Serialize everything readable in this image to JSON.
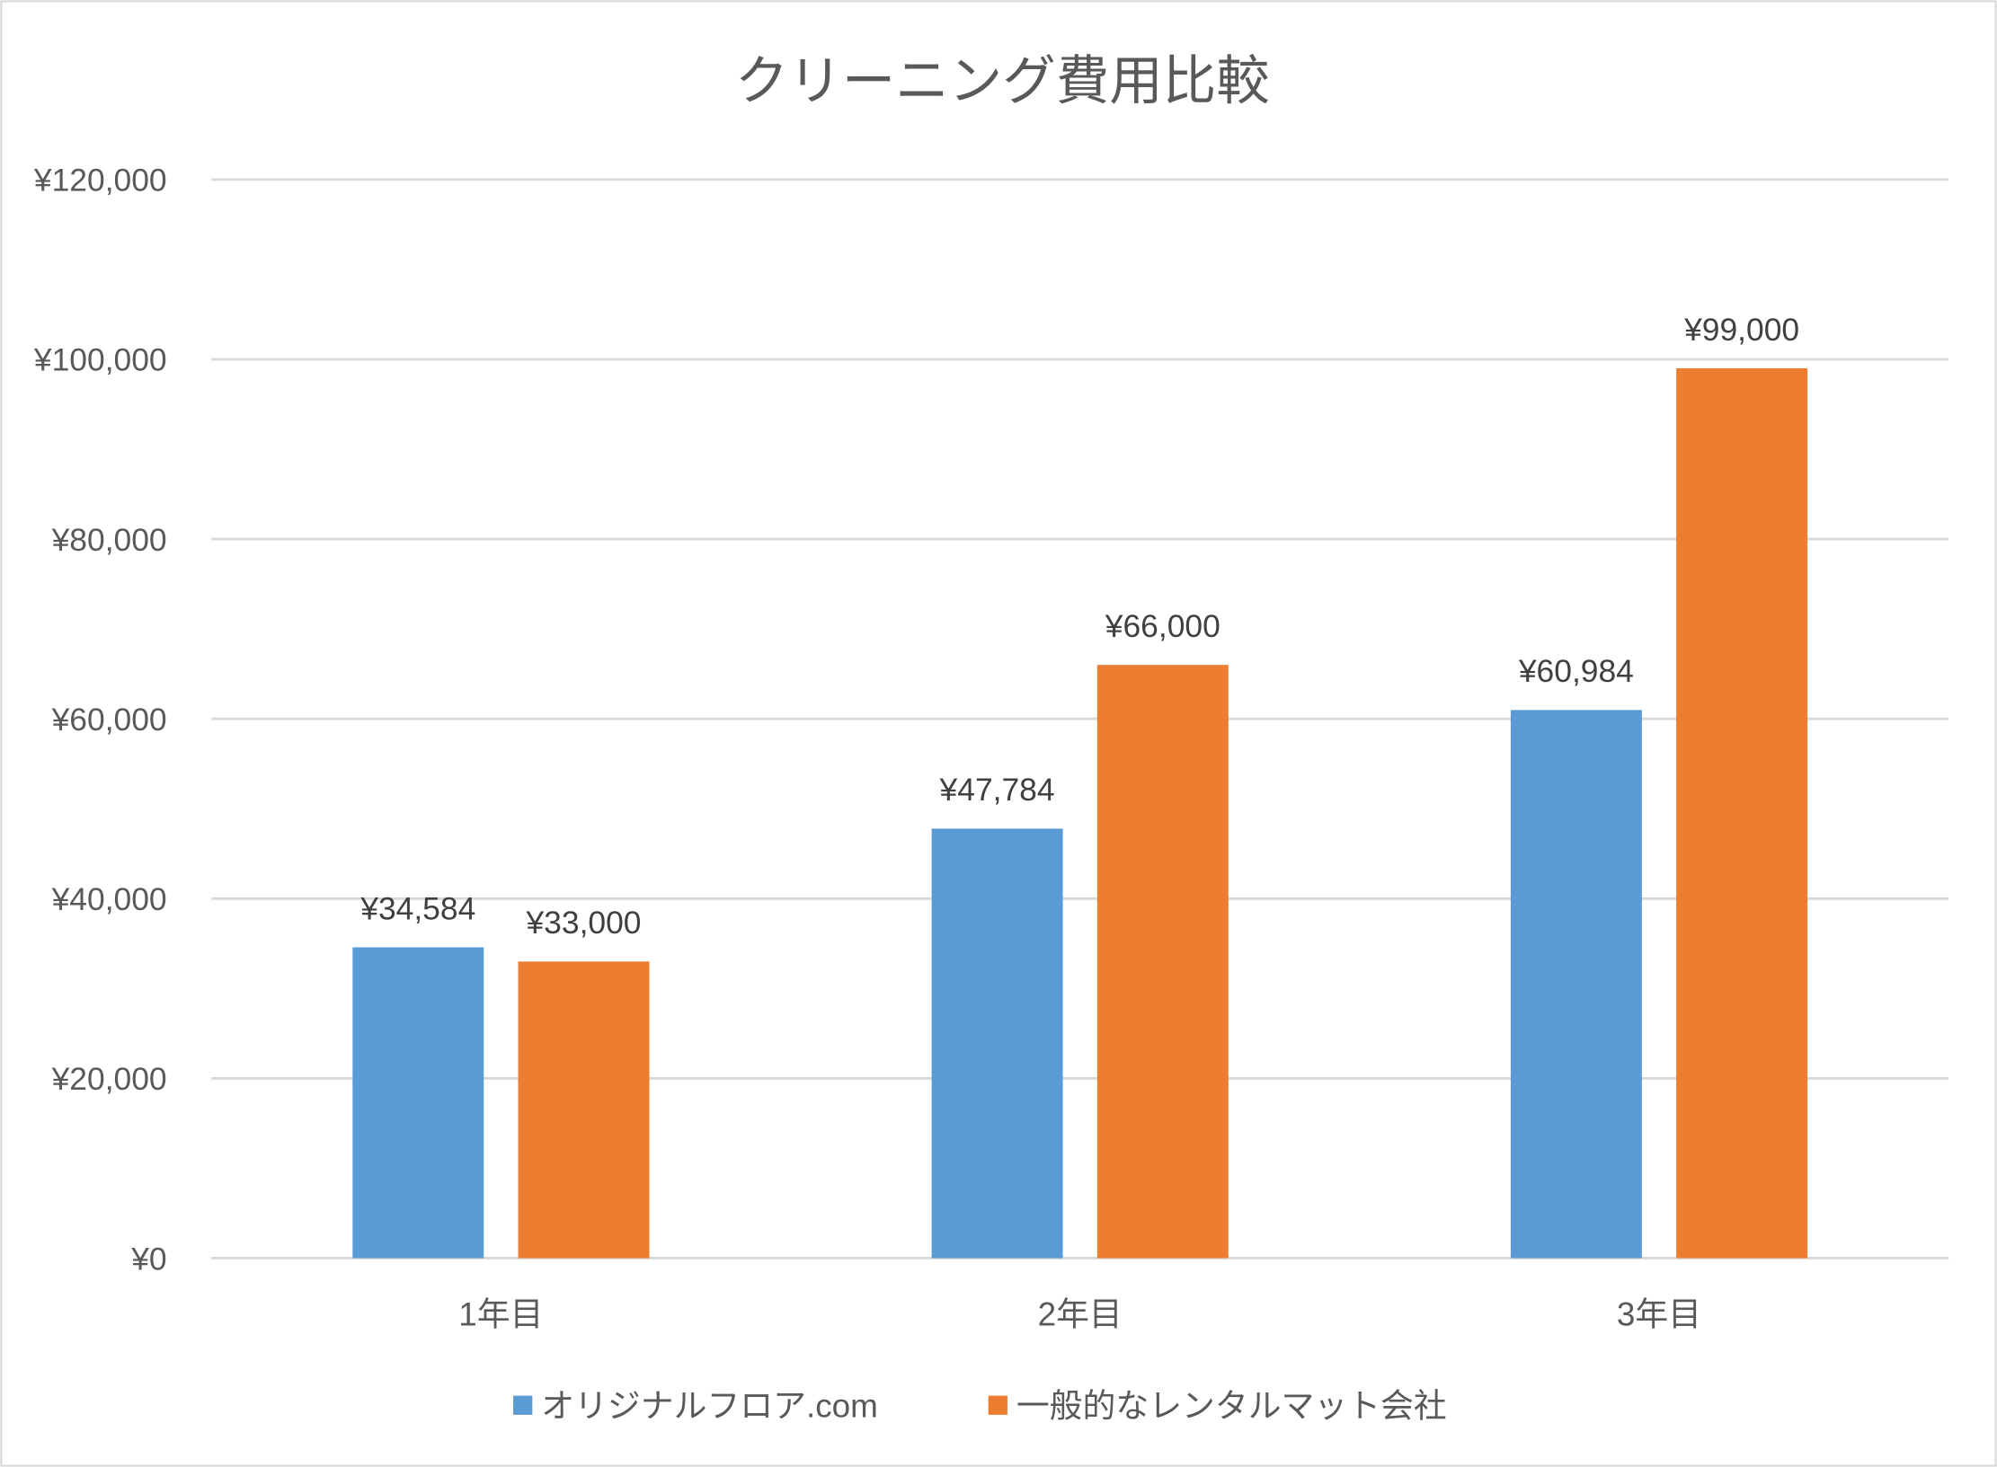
{
  "chart_data": {
    "type": "bar",
    "title": "クリーニング費用比較",
    "categories": [
      "1年目",
      "2年目",
      "3年目"
    ],
    "series": [
      {
        "name": "オリジナルフロア.com",
        "color": "#5B9BD5",
        "values": [
          34584,
          47784,
          60984
        ],
        "labels": [
          "¥34,584",
          "¥47,784",
          "¥60,984"
        ]
      },
      {
        "name": "一般的なレンタルマット会社",
        "color": "#ED7D31",
        "values": [
          33000,
          66000,
          99000
        ],
        "labels": [
          "¥33,000",
          "¥66,000",
          "¥99,000"
        ]
      }
    ],
    "ylim": [
      0,
      120000
    ],
    "yticks": [
      0,
      20000,
      40000,
      60000,
      80000,
      100000,
      120000
    ],
    "ytick_labels": [
      "¥0",
      "¥20,000",
      "¥40,000",
      "¥60,000",
      "¥80,000",
      "¥100,000",
      "¥120,000"
    ],
    "xlabel": "",
    "ylabel": "",
    "grid": true,
    "legend": "bottom"
  }
}
